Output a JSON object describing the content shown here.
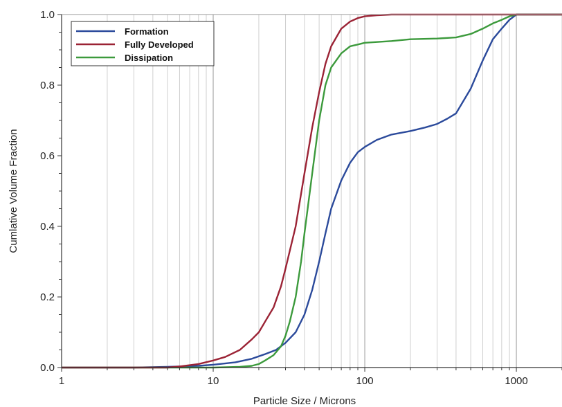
{
  "chart_data": {
    "type": "line",
    "title": "",
    "xlabel": "Particle Size / Microns",
    "ylabel": "Cumlative Volume Fraction",
    "x_scale": "log",
    "xlim": [
      1,
      2000
    ],
    "ylim": [
      0,
      1.0
    ],
    "x_ticks": [
      {
        "value": 1,
        "label": "1"
      },
      {
        "value": 10,
        "label": "10"
      },
      {
        "value": 100,
        "label": "100"
      },
      {
        "value": 1000,
        "label": "1000"
      }
    ],
    "y_ticks": [
      {
        "value": 0,
        "label": "0.0"
      },
      {
        "value": 0.2,
        "label": "0.2"
      },
      {
        "value": 0.4,
        "label": "0.4"
      },
      {
        "value": 0.6,
        "label": "0.6"
      },
      {
        "value": 0.8,
        "label": "0.8"
      },
      {
        "value": 1.0,
        "label": "1.0"
      }
    ],
    "grid": "vertical",
    "legend_position": "top-left",
    "series": [
      {
        "name": "Formation",
        "color": "#2b4a9b",
        "x": [
          1,
          3,
          5,
          8,
          10,
          14,
          18,
          22,
          26,
          30,
          35,
          40,
          45,
          50,
          55,
          60,
          70,
          80,
          90,
          100,
          120,
          150,
          200,
          250,
          300,
          350,
          400,
          500,
          600,
          700,
          800,
          900,
          1000,
          2000
        ],
        "y": [
          0,
          0,
          0.002,
          0.005,
          0.008,
          0.015,
          0.025,
          0.038,
          0.05,
          0.07,
          0.1,
          0.15,
          0.22,
          0.3,
          0.38,
          0.45,
          0.53,
          0.58,
          0.61,
          0.625,
          0.645,
          0.66,
          0.67,
          0.68,
          0.69,
          0.705,
          0.72,
          0.79,
          0.87,
          0.93,
          0.96,
          0.985,
          1.0,
          1.0
        ]
      },
      {
        "name": "Fully Developed",
        "color": "#9b2335",
        "x": [
          1,
          3,
          5,
          6,
          8,
          10,
          12,
          15,
          18,
          20,
          22,
          25,
          28,
          30,
          35,
          40,
          45,
          50,
          55,
          60,
          70,
          80,
          90,
          100,
          120,
          150,
          200,
          500,
          1000,
          2000
        ],
        "y": [
          0,
          0,
          0,
          0.003,
          0.01,
          0.02,
          0.03,
          0.05,
          0.08,
          0.1,
          0.13,
          0.17,
          0.23,
          0.28,
          0.4,
          0.55,
          0.68,
          0.78,
          0.86,
          0.91,
          0.96,
          0.98,
          0.99,
          0.995,
          0.998,
          1.0,
          1.0,
          1.0,
          1.0,
          1.0
        ]
      },
      {
        "name": "Dissipation",
        "color": "#3c9a3c",
        "x": [
          1,
          5,
          10,
          15,
          18,
          20,
          22,
          25,
          28,
          30,
          32,
          35,
          38,
          40,
          45,
          50,
          55,
          60,
          70,
          80,
          90,
          100,
          150,
          200,
          300,
          400,
          500,
          600,
          700,
          800,
          900,
          1000,
          2000
        ],
        "y": [
          0,
          0,
          0,
          0.002,
          0.005,
          0.01,
          0.02,
          0.035,
          0.06,
          0.09,
          0.13,
          0.2,
          0.3,
          0.38,
          0.55,
          0.7,
          0.8,
          0.85,
          0.89,
          0.91,
          0.915,
          0.92,
          0.925,
          0.93,
          0.932,
          0.935,
          0.945,
          0.96,
          0.975,
          0.985,
          0.995,
          1.0,
          1.0
        ]
      }
    ]
  }
}
